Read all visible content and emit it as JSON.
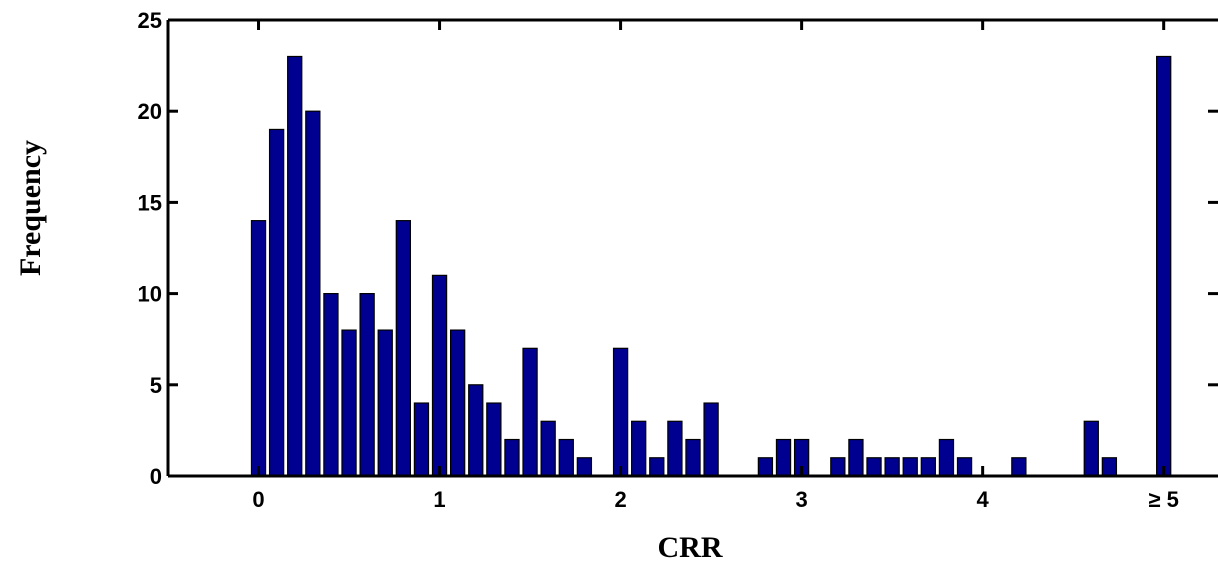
{
  "chart_data": {
    "type": "bar",
    "title": "",
    "xlabel": "CRR",
    "ylabel": "Frequency",
    "xlim": [
      -0.5,
      5.3
    ],
    "ylim": [
      0,
      25
    ],
    "x_ticks": [
      0,
      1,
      2,
      3,
      4,
      5
    ],
    "x_tick_labels": [
      "0",
      "1",
      "2",
      "3",
      "4",
      "≥ 5"
    ],
    "y_ticks": [
      0,
      5,
      10,
      15,
      20,
      25
    ],
    "y_tick_labels": [
      "0",
      "5",
      "10",
      "15",
      "20",
      "25"
    ],
    "bin_width": 0.1,
    "bar_color": "#000090",
    "grid": false,
    "legend": "none",
    "x": [
      0,
      0.1,
      0.2,
      0.3,
      0.4,
      0.5,
      0.6,
      0.7,
      0.8,
      0.9,
      1.0,
      1.1,
      1.2,
      1.3,
      1.4,
      1.5,
      1.6,
      1.7,
      1.8,
      1.9,
      2.0,
      2.1,
      2.2,
      2.3,
      2.4,
      2.5,
      2.6,
      2.7,
      2.8,
      2.9,
      3.0,
      3.1,
      3.2,
      3.3,
      3.4,
      3.5,
      3.6,
      3.7,
      3.8,
      3.9,
      4.0,
      4.1,
      4.2,
      4.3,
      4.4,
      4.5,
      4.6,
      4.7,
      4.8,
      4.9,
      5.0
    ],
    "values": [
      14,
      19,
      23,
      20,
      10,
      8,
      10,
      8,
      14,
      4,
      11,
      8,
      5,
      4,
      2,
      7,
      3,
      2,
      1,
      0,
      7,
      3,
      1,
      3,
      2,
      4,
      0,
      0,
      1,
      2,
      2,
      0,
      1,
      2,
      1,
      1,
      1,
      1,
      2,
      1,
      0,
      0,
      1,
      0,
      0,
      0,
      3,
      1,
      0,
      0,
      23
    ]
  }
}
